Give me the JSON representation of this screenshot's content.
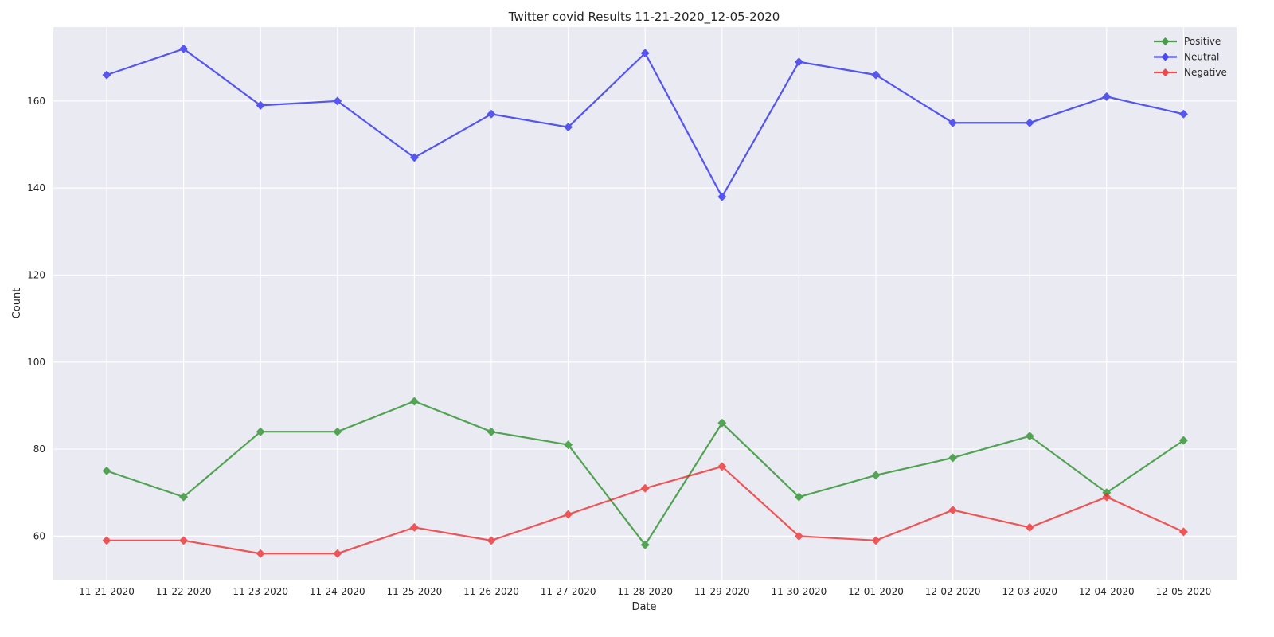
{
  "chart_data": {
    "type": "line",
    "title": "Twitter covid Results 11-21-2020_12-05-2020",
    "xlabel": "Date",
    "ylabel": "Count",
    "categories": [
      "11-21-2020",
      "11-22-2020",
      "11-23-2020",
      "11-24-2020",
      "11-25-2020",
      "11-26-2020",
      "11-27-2020",
      "11-28-2020",
      "11-29-2020",
      "11-30-2020",
      "12-01-2020",
      "12-02-2020",
      "12-03-2020",
      "12-04-2020",
      "12-05-2020"
    ],
    "ylim": [
      50,
      177
    ],
    "yticks": [
      60,
      80,
      100,
      120,
      140,
      160
    ],
    "grid": true,
    "legend_position": "top-right",
    "series": [
      {
        "name": "Positive",
        "color": "#1f8a1f",
        "values": [
          75,
          69,
          84,
          84,
          91,
          84,
          81,
          58,
          86,
          69,
          74,
          78,
          83,
          70,
          82
        ]
      },
      {
        "name": "Neutral",
        "color": "#2323f0",
        "values": [
          166,
          172,
          159,
          160,
          147,
          157,
          154,
          171,
          138,
          169,
          166,
          155,
          155,
          161,
          157
        ]
      },
      {
        "name": "Negative",
        "color": "#f02323",
        "values": [
          59,
          59,
          56,
          56,
          62,
          59,
          65,
          71,
          76,
          60,
          59,
          66,
          62,
          69,
          61
        ]
      }
    ],
    "background": "#eaeaf2",
    "marker": "diamond-icon"
  }
}
